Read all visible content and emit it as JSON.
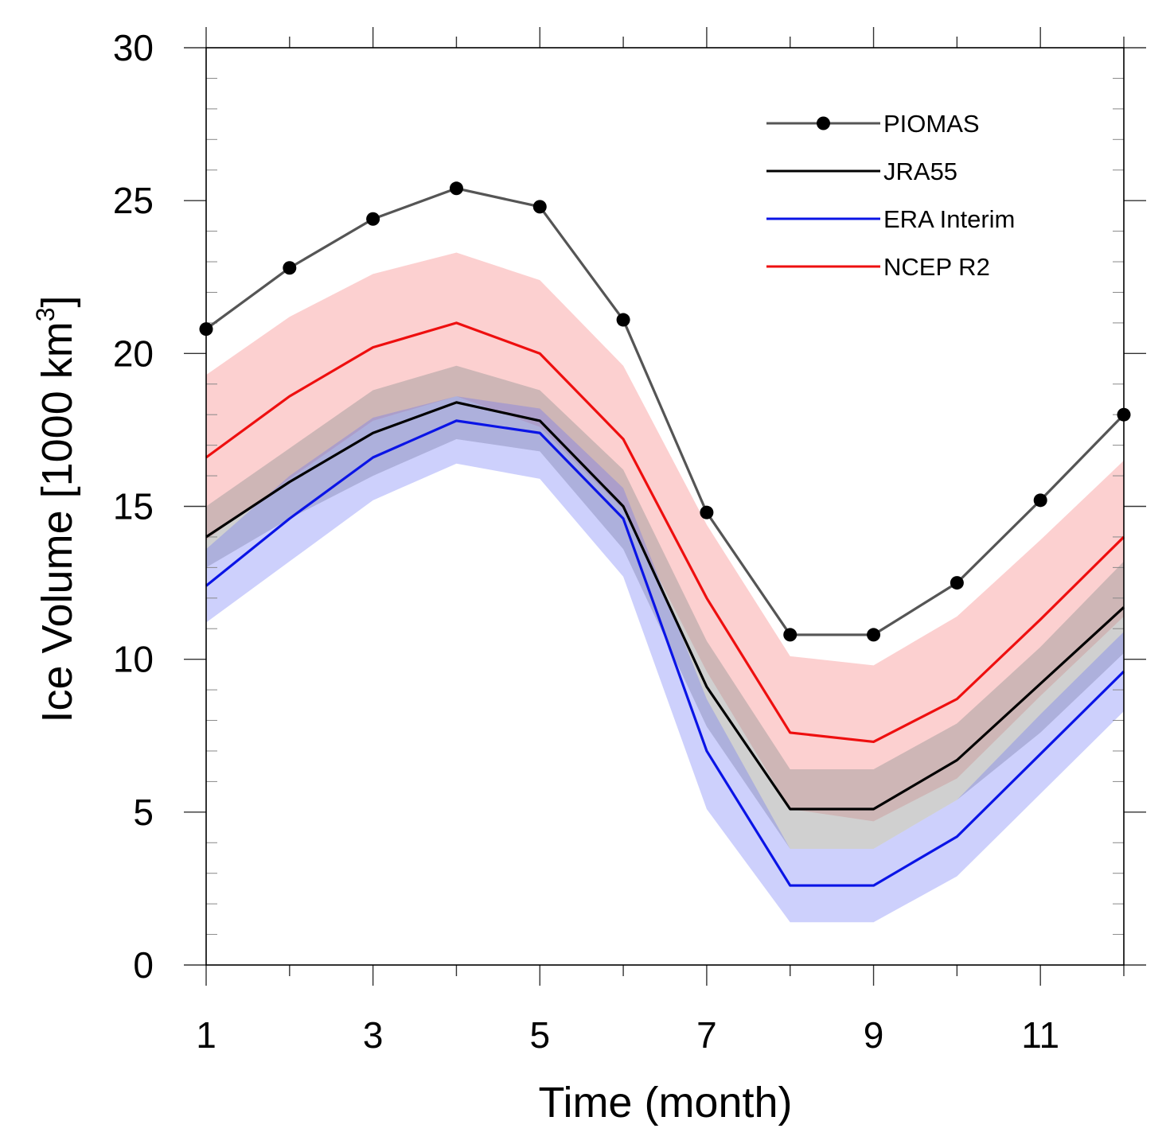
{
  "chart_data": {
    "type": "line",
    "title": "",
    "xlabel": "Time (month)",
    "ylabel_main": "Ice Volume [1000 km",
    "ylabel_sup": "3",
    "ylabel_end": "]",
    "xlim": [
      1,
      12
    ],
    "ylim": [
      0,
      30
    ],
    "x": [
      1,
      2,
      3,
      4,
      5,
      6,
      7,
      8,
      9,
      10,
      11,
      12
    ],
    "xticks": [
      1,
      3,
      5,
      7,
      9,
      11
    ],
    "xtick_labels": [
      "1",
      "3",
      "5",
      "7",
      "9",
      "11"
    ],
    "yticks": [
      0,
      5,
      10,
      15,
      20,
      25,
      30
    ],
    "ytick_labels": [
      "0",
      "5",
      "10",
      "15",
      "20",
      "25",
      "30"
    ],
    "legend_position": "top-right",
    "series": [
      {
        "name": "PIOMAS",
        "color": "#555555",
        "markers": true,
        "values": [
          20.8,
          22.8,
          24.4,
          25.4,
          24.8,
          21.1,
          14.8,
          10.8,
          10.8,
          12.5,
          15.2,
          18.0
        ]
      },
      {
        "name": "JRA55",
        "color": "#000000",
        "markers": false,
        "band_color": "rgba(150,150,150,0.45)",
        "band_lower": [
          13.0,
          14.6,
          16.0,
          17.2,
          16.8,
          13.6,
          7.8,
          3.8,
          3.8,
          5.4,
          7.6,
          10.2
        ],
        "band_upper": [
          15.0,
          16.9,
          18.8,
          19.6,
          18.8,
          16.2,
          10.6,
          6.4,
          6.4,
          7.9,
          10.4,
          13.2
        ],
        "values": [
          14.0,
          15.8,
          17.4,
          18.4,
          17.8,
          15.0,
          9.1,
          5.1,
          5.1,
          6.7,
          9.2,
          11.7
        ]
      },
      {
        "name": "ERA Interim",
        "color": "#0a14e6",
        "markers": false,
        "band_color": "rgba(100,110,245,0.32)",
        "band_lower": [
          11.2,
          13.2,
          15.2,
          16.4,
          15.9,
          12.7,
          5.1,
          1.4,
          1.4,
          2.9,
          5.6,
          8.3
        ],
        "band_upper": [
          13.6,
          16.0,
          17.9,
          18.6,
          18.2,
          15.6,
          8.7,
          3.8,
          3.8,
          5.4,
          8.2,
          10.9
        ],
        "values": [
          12.4,
          14.6,
          16.6,
          17.8,
          17.4,
          14.6,
          7.0,
          2.6,
          2.6,
          4.2,
          6.9,
          9.6
        ]
      },
      {
        "name": "NCEP R2",
        "color": "#ee0f0f",
        "markers": false,
        "band_color": "rgba(245,120,120,0.35)",
        "band_lower": [
          13.9,
          15.9,
          17.8,
          18.6,
          17.6,
          14.9,
          9.6,
          5.1,
          4.7,
          6.1,
          8.8,
          11.4
        ],
        "band_upper": [
          19.3,
          21.2,
          22.6,
          23.3,
          22.4,
          19.6,
          14.4,
          10.1,
          9.8,
          11.4,
          13.9,
          16.5
        ],
        "values": [
          16.6,
          18.6,
          20.2,
          21.0,
          20.0,
          17.2,
          12.0,
          7.6,
          7.3,
          8.7,
          11.3,
          14.0
        ]
      }
    ]
  }
}
